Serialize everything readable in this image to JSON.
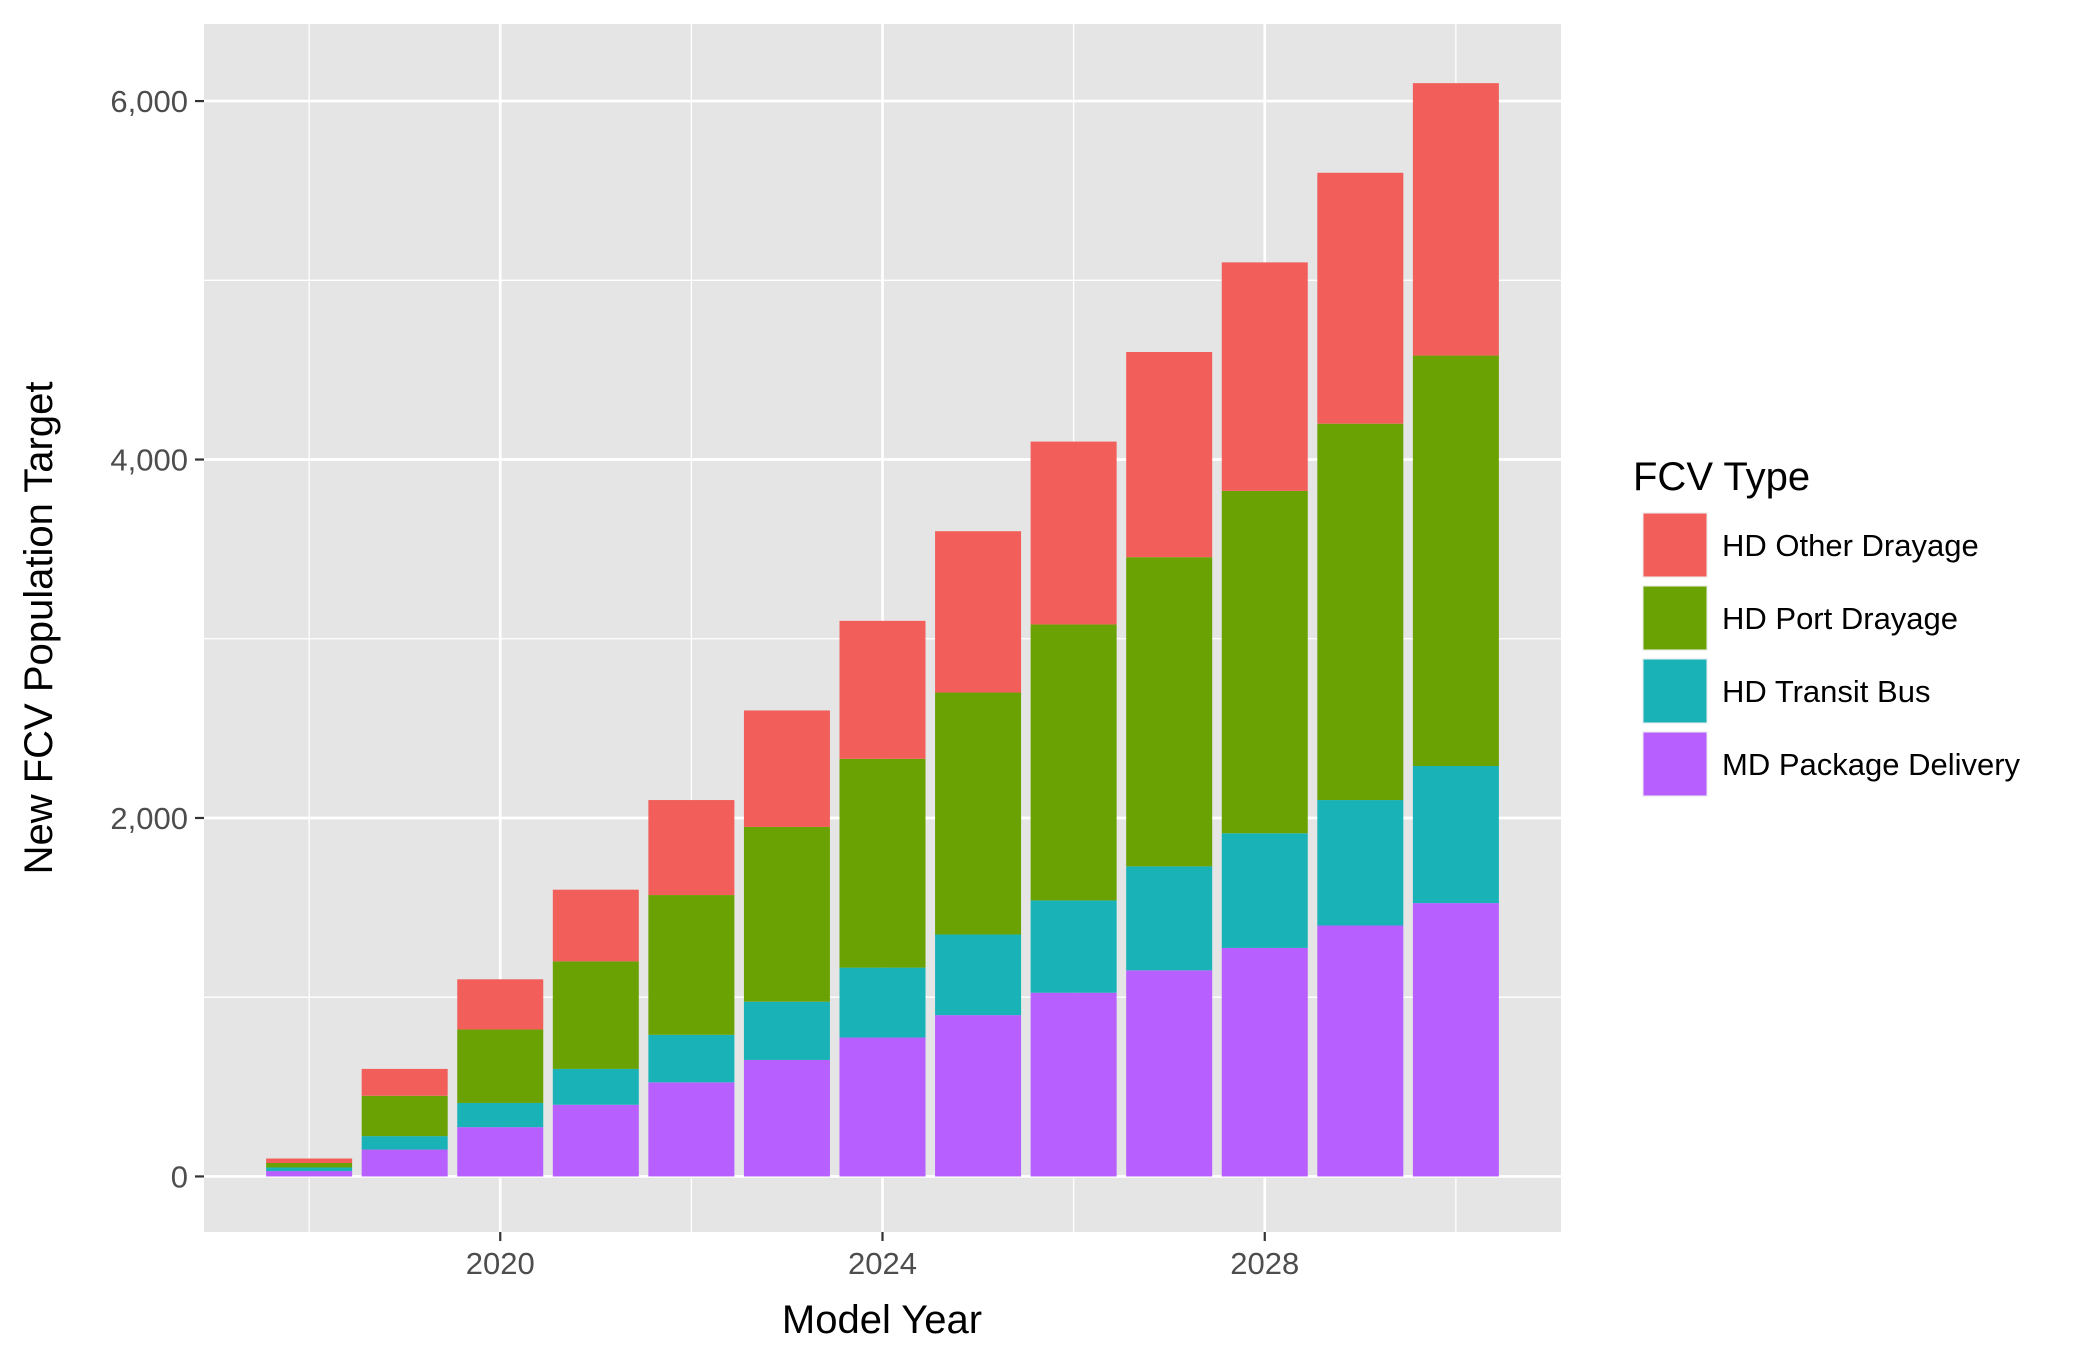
{
  "chart_data": {
    "type": "bar",
    "stacked": true,
    "xlabel": "Model Year",
    "ylabel": "New FCV Population Target",
    "ylim": [
      -310,
      6430
    ],
    "xlim": [
      2016.9,
      2031.1
    ],
    "x_ticks": [
      2020,
      2024,
      2028
    ],
    "y_ticks": [
      0,
      2000,
      4000,
      6000
    ],
    "y_tick_labels": [
      "0",
      "2,000",
      "4,000",
      "6,000"
    ],
    "categories": [
      2018,
      2019,
      2020,
      2021,
      2022,
      2023,
      2024,
      2025,
      2026,
      2027,
      2028,
      2029,
      2030
    ],
    "series": [
      {
        "name": "MD Package Delivery",
        "color": "#B75FFF",
        "values": [
          30,
          150,
          275,
          400,
          525,
          650,
          775,
          900,
          1025,
          1150,
          1275,
          1400,
          1525
        ]
      },
      {
        "name": "HD Transit Bus",
        "color": "#19B2B7",
        "values": [
          20,
          75,
          135,
          200,
          265,
          325,
          390,
          450,
          515,
          580,
          640,
          700,
          765
        ]
      },
      {
        "name": "HD Port Drayage",
        "color": "#6AA204",
        "values": [
          25,
          225,
          410,
          600,
          780,
          975,
          1165,
          1350,
          1540,
          1725,
          1910,
          2100,
          2290
        ]
      },
      {
        "name": "HD Other Drayage",
        "color": "#F25F5B",
        "values": [
          25,
          150,
          280,
          400,
          530,
          650,
          770,
          900,
          1020,
          1145,
          1275,
          1400,
          1520
        ]
      }
    ],
    "legend": {
      "title": "FCV Type",
      "position": "right",
      "order": [
        "HD Other Drayage",
        "HD Port Drayage",
        "HD Transit Bus",
        "MD Package Delivery"
      ]
    },
    "grid": true,
    "panel_background": "#E5E5E5",
    "grid_color": "#FFFFFF"
  }
}
